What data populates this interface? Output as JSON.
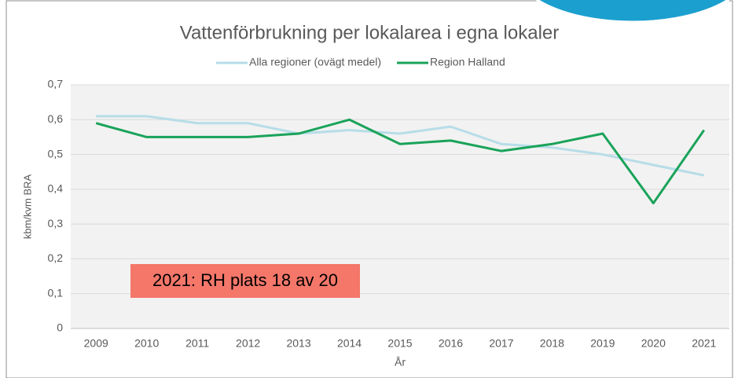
{
  "chart_data": {
    "type": "line",
    "title": "Vattenförbrukning per lokalarea i egna lokaler",
    "x_label": "År",
    "y_label": "kbm/kvm BRA",
    "annotation": "2021: RH plats 18 av 20",
    "categories": [
      "2009",
      "2010",
      "2011",
      "2012",
      "2013",
      "2014",
      "2015",
      "2016",
      "2017",
      "2018",
      "2019",
      "2020",
      "2021"
    ],
    "series": [
      {
        "name": "Alla regioner (ovägt medel)",
        "color": "#b7dde8",
        "values": [
          0.61,
          0.61,
          0.59,
          0.59,
          0.56,
          0.57,
          0.56,
          0.58,
          0.53,
          0.52,
          0.5,
          0.47,
          0.44
        ]
      },
      {
        "name": "Region Halland",
        "color": "#1aa35a",
        "values": [
          0.59,
          0.55,
          0.55,
          0.55,
          0.56,
          0.6,
          0.53,
          0.54,
          0.51,
          0.53,
          0.56,
          0.36,
          0.57
        ]
      }
    ],
    "ylim": [
      0,
      0.7
    ],
    "yticks": [
      0,
      {
        "value": 0.1,
        "label": "0,1"
      },
      {
        "value": 0.2,
        "label": "0,2"
      },
      {
        "value": 0.3,
        "label": "0,3"
      },
      {
        "value": 0.4,
        "label": "0,4"
      },
      {
        "value": 0.5,
        "label": "0,5"
      },
      {
        "value": 0.6,
        "label": "0,6"
      },
      {
        "value": 0.7,
        "label": "0,7"
      }
    ],
    "grid": true,
    "legend": "top"
  }
}
